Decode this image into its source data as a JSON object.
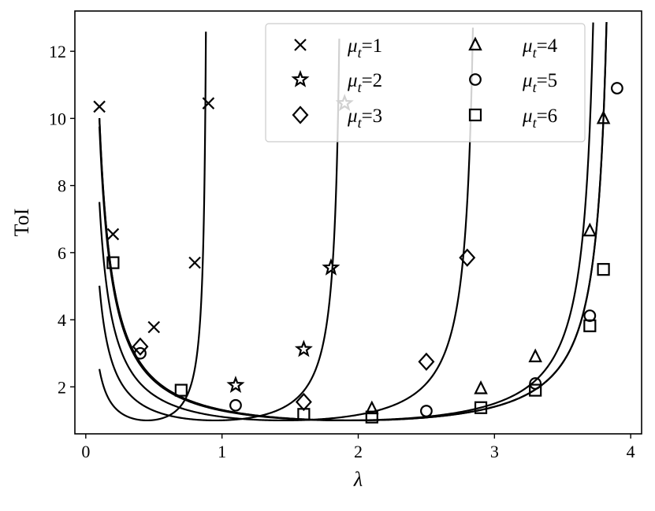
{
  "chart_data": {
    "type": "scatter",
    "title": "",
    "xlabel": "λ",
    "ylabel": "ToI",
    "xlim": [
      -0.08,
      4.08
    ],
    "ylim": [
      0.6,
      13.2
    ],
    "xticks": [
      0,
      1,
      2,
      3,
      4
    ],
    "yticks": [
      2,
      4,
      6,
      8,
      10,
      12
    ],
    "grid": false,
    "legend_position": "top-right",
    "legend_columns": 2,
    "series": [
      {
        "name": "μt=1",
        "legend_prefix": "μ",
        "legend_sub": "t",
        "legend_suffix": "=1",
        "marker": "x",
        "curve_constant": 0.9,
        "points": [
          [
            0.1,
            10.35
          ],
          [
            0.2,
            6.55
          ],
          [
            0.5,
            3.78
          ],
          [
            0.8,
            5.7
          ],
          [
            0.9,
            10.45
          ]
        ]
      },
      {
        "name": "μt=2",
        "legend_prefix": "μ",
        "legend_sub": "t",
        "legend_suffix": "=2",
        "marker": "star",
        "curve_constant": 1.9,
        "points": [
          [
            1.1,
            2.05
          ],
          [
            1.6,
            3.12
          ],
          [
            1.8,
            5.55
          ],
          [
            1.9,
            10.45
          ]
        ]
      },
      {
        "name": "μt=3",
        "legend_prefix": "μ",
        "legend_sub": "t",
        "legend_suffix": "=3",
        "marker": "diamond",
        "curve_constant": 2.9,
        "points": [
          [
            0.4,
            3.2
          ],
          [
            1.6,
            1.55
          ],
          [
            2.5,
            2.75
          ],
          [
            2.8,
            5.85
          ]
        ]
      },
      {
        "name": "μt=4",
        "legend_prefix": "μ",
        "legend_sub": "t",
        "legend_suffix": "=4",
        "marker": "triangle",
        "curve_constant": 3.8,
        "points": [
          [
            2.1,
            1.35
          ],
          [
            2.9,
            1.95
          ],
          [
            3.3,
            2.9
          ],
          [
            3.7,
            6.65
          ],
          [
            3.8,
            10.0
          ]
        ]
      },
      {
        "name": "μt=5",
        "legend_prefix": "μ",
        "legend_sub": "t",
        "legend_suffix": "=5",
        "marker": "circle",
        "curve_constant": 3.9,
        "points": [
          [
            0.4,
            3.0
          ],
          [
            1.1,
            1.45
          ],
          [
            2.5,
            1.28
          ],
          [
            3.3,
            2.1
          ],
          [
            3.7,
            4.12
          ],
          [
            3.9,
            10.9
          ]
        ]
      },
      {
        "name": "μt=6",
        "legend_prefix": "μ",
        "legend_sub": "t",
        "legend_suffix": "=6",
        "marker": "square",
        "curve_constant": 3.9,
        "points": [
          [
            0.2,
            5.7
          ],
          [
            0.7,
            1.9
          ],
          [
            1.6,
            1.18
          ],
          [
            2.1,
            1.1
          ],
          [
            2.9,
            1.38
          ],
          [
            3.3,
            1.9
          ],
          [
            3.7,
            3.82
          ],
          [
            3.8,
            5.5
          ]
        ]
      }
    ]
  }
}
